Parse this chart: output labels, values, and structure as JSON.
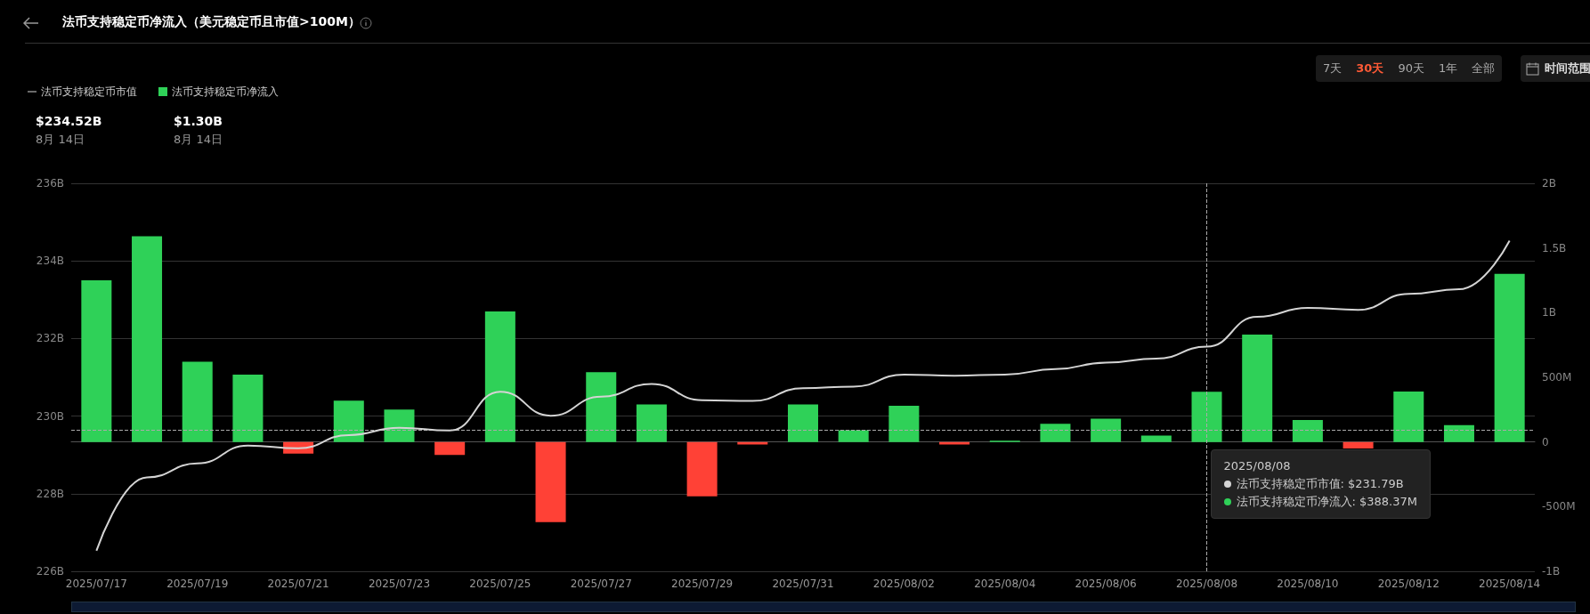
{
  "chart_data": {
    "type": "bar",
    "title": "法币支持稳定币净流入（美元稳定币且市值>100M）",
    "categories": [
      "2025/07/17",
      null,
      "2025/07/19",
      null,
      "2025/07/21",
      null,
      "2025/07/23",
      null,
      "2025/07/25",
      null,
      "2025/07/27",
      null,
      "2025/07/29",
      null,
      "2025/07/31",
      null,
      "2025/08/02",
      null,
      "2025/08/04",
      null,
      "2025/08/06",
      null,
      "2025/08/08",
      null,
      "2025/08/10",
      null,
      "2025/08/12",
      null,
      "2025/08/14"
    ],
    "series": [
      {
        "name": "法币支持稳定币市值",
        "type": "line",
        "color": "#d4d4d4",
        "values": [
          226.53,
          228.42,
          228.78,
          229.24,
          229.17,
          229.51,
          229.7,
          229.63,
          230.63,
          230.01,
          230.5,
          230.83,
          230.41,
          230.39,
          230.72,
          230.76,
          231.07,
          231.04,
          231.07,
          231.21,
          231.38,
          231.48,
          231.79,
          232.56,
          232.79,
          232.74,
          233.15,
          233.27,
          234.52
        ]
      },
      {
        "name": "法币支持稳定币净流入",
        "axis": "y2",
        "color": "#2fd158",
        "values": [
          1250000000,
          1590000000,
          620000000,
          520000000,
          -90000000,
          320000000,
          250000000,
          -100000000,
          1010000000,
          -620000000,
          540000000,
          290000000,
          -420000000,
          -20000000,
          290000000,
          90000000,
          280000000,
          -20000000,
          10000000,
          140000000,
          180000000,
          50000000,
          388000000,
          830000000,
          170000000,
          -50000000,
          390000000,
          130000000,
          1300000000
        ],
        "colors": [
          "#2fd158",
          "#2fd158",
          "#2fd158",
          "#2fd158",
          "#ff4136",
          "#2fd158",
          "#2fd158",
          "#ff4136",
          "#2fd158",
          "#ff4136",
          "#2fd158",
          "#2fd158",
          "#ff4136",
          "#ff4136",
          "#2fd158",
          "#2fd158",
          "#2fd158",
          "#ff4136",
          "#2fd158",
          "#2fd158",
          "#2fd158",
          "#2fd158",
          "#2fd158",
          "#2fd158",
          "#2fd158",
          "#ff4136",
          "#2fd158",
          "#2fd158",
          "#2fd158"
        ]
      }
    ],
    "ylim": [
      226,
      236
    ],
    "yticks": [
      {
        "value": 226,
        "label": "226B"
      },
      {
        "value": 228,
        "label": "228B"
      },
      {
        "value": 230,
        "label": "230B"
      },
      {
        "value": 232,
        "label": "232B"
      },
      {
        "value": 234,
        "label": "234B"
      },
      {
        "value": 236,
        "label": "236B"
      }
    ],
    "y2lim": [
      -1000000000,
      2000000000
    ],
    "y2ticks": [
      {
        "value": -1000000000,
        "label": "-1B"
      },
      {
        "value": -500000000,
        "label": "-500M"
      },
      0,
      {
        "value": 500000000,
        "label": "500M"
      },
      {
        "value": 1000000000,
        "label": "1B"
      },
      {
        "value": 1500000000,
        "label": "1.5B"
      },
      {
        "value": 2000000000,
        "label": "2B"
      }
    ],
    "grid": "y",
    "legend": "top left",
    "marker": "none",
    "ref_lines": [
      {
        "axis": "x",
        "value": "2025/08/08",
        "color": "#aaaaaa",
        "line_style": "dashed"
      },
      {
        "axis": "y2",
        "value": 90000000,
        "color": "#aaaaaa",
        "line_style": "dashed"
      }
    ],
    "annotations": [
      "$234.52B",
      "8月 14日",
      "$1.30B",
      "8月 14日",
      "法币支持稳定币市值: $231.79B",
      "法币支持稳定币净流入: $388.37M",
      "7天",
      "30天",
      "90天",
      "1年",
      "全部",
      "时间范围"
    ]
  }
}
